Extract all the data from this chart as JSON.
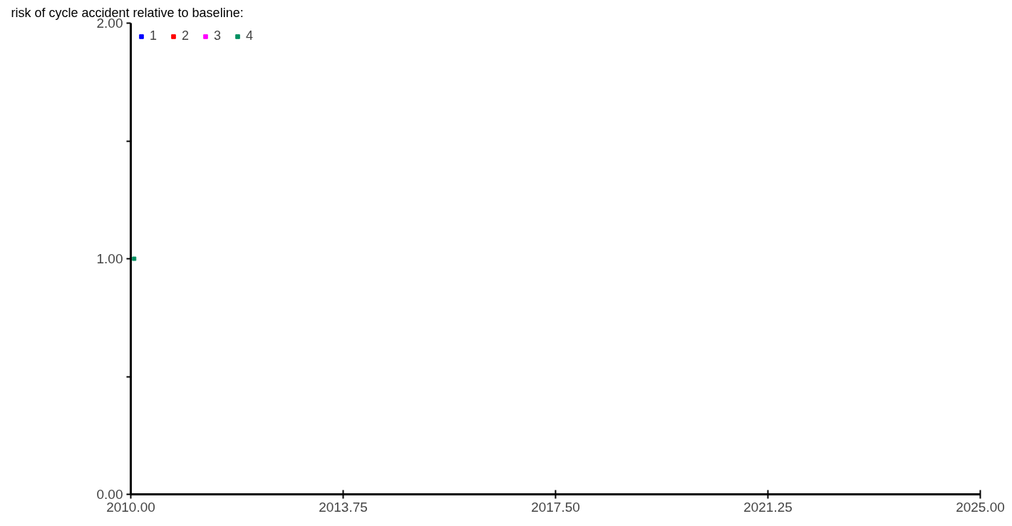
{
  "chart_data": {
    "type": "scatter",
    "x": [
      2010.06
    ],
    "title": "risk of cycle accident relative to baseline:",
    "xlim": [
      2010,
      2025
    ],
    "xticks": [
      {
        "value": 2010,
        "label": "2010.00"
      },
      {
        "value": 2013.75,
        "label": "2013.75"
      },
      {
        "value": 2017.5,
        "label": "2017.50"
      },
      {
        "value": 2021.25,
        "label": "2021.25"
      },
      {
        "value": 2025,
        "label": "2025.00"
      }
    ],
    "ylim": [
      0,
      2
    ],
    "yticks": [
      {
        "value": 0,
        "label": "0.00"
      },
      {
        "value": 0.5,
        "label": null
      },
      {
        "value": 1,
        "label": "1.00"
      },
      {
        "value": 1.5,
        "label": null
      },
      {
        "value": 2,
        "label": "2.00"
      }
    ],
    "series": [
      {
        "name": "1",
        "color": "#0000ff",
        "values": [
          null
        ]
      },
      {
        "name": "2",
        "color": "#ff0000",
        "values": [
          null
        ]
      },
      {
        "name": "3",
        "color": "#ff00ff",
        "values": [
          null
        ]
      },
      {
        "name": "4",
        "color": "#008f60",
        "values": [
          1
        ]
      }
    ],
    "legend": "top left",
    "grid": false,
    "marker": "square"
  }
}
